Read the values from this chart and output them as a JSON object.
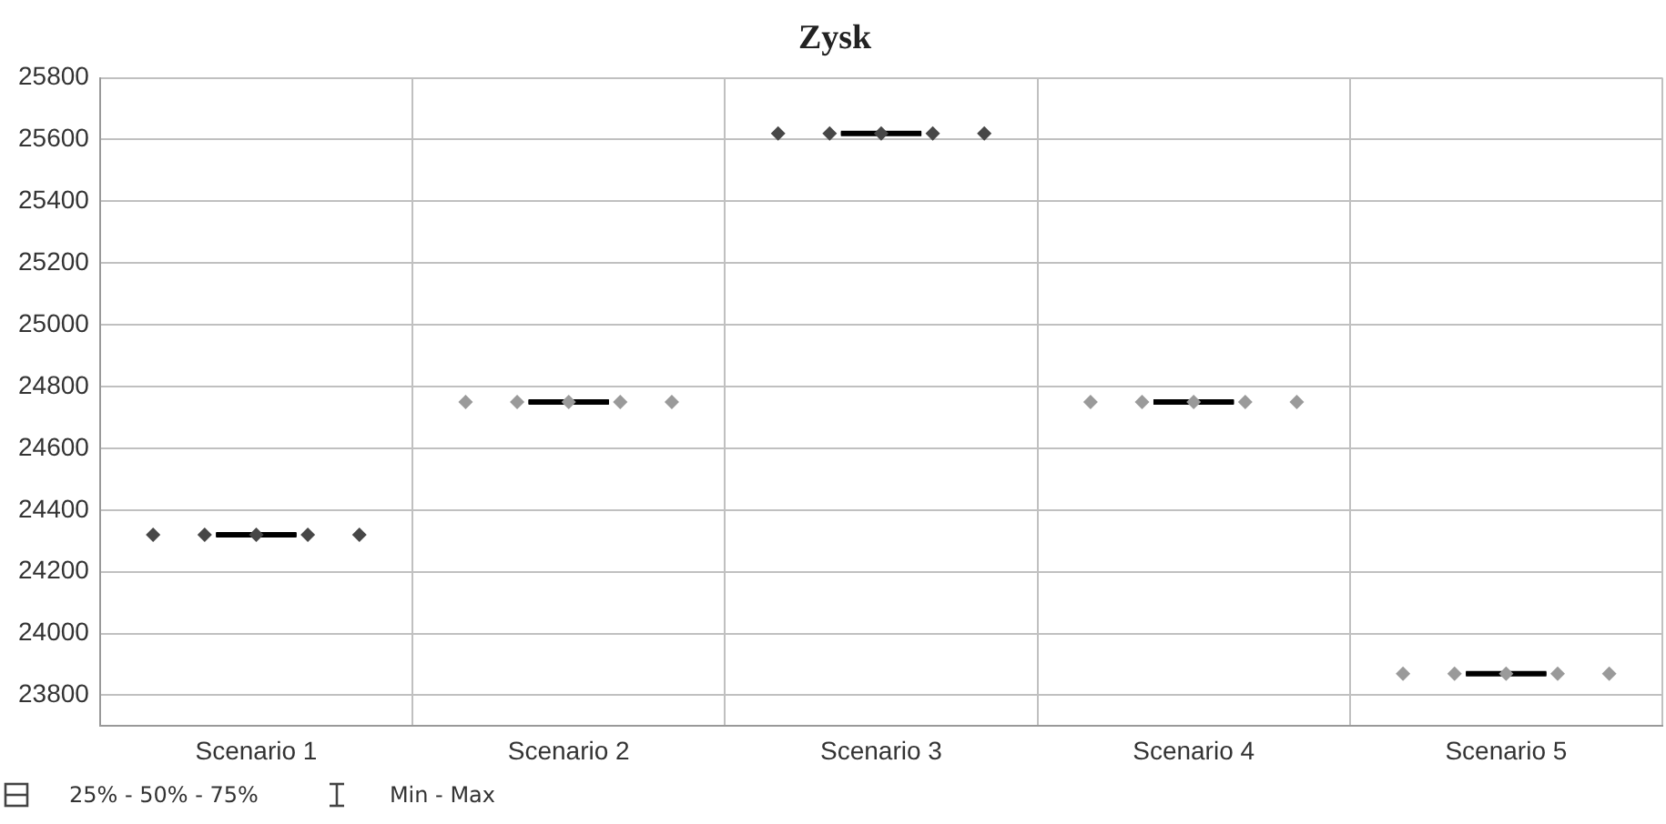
{
  "chart_data": {
    "type": "box",
    "title": "Zysk",
    "categories": [
      "Scenario 1",
      "Scenario 2",
      "Scenario 3",
      "Scenario 4",
      "Scenario 5"
    ],
    "series": [
      {
        "color": "#000000",
        "boxes": [
          {
            "low": 24320,
            "q1": 24320,
            "median": 24320,
            "q3": 24320,
            "high": 24320
          },
          {
            "low": 24750,
            "q1": 24750,
            "median": 24750,
            "q3": 24750,
            "high": 24750
          },
          {
            "low": 25620,
            "q1": 25620,
            "median": 25620,
            "q3": 25620,
            "high": 25620
          },
          {
            "low": 24750,
            "q1": 24750,
            "median": 24750,
            "q3": 24750,
            "high": 24750
          },
          {
            "low": 23870,
            "q1": 23870,
            "median": 23870,
            "q3": 23870,
            "high": 23870
          }
        ]
      },
      {
        "type": "scatter",
        "x": [
          "Scenario 1",
          "Scenario 1",
          "Scenario 1",
          "Scenario 1",
          "Scenario 1",
          "Scenario 2",
          "Scenario 2",
          "Scenario 2",
          "Scenario 2",
          "Scenario 2",
          "Scenario 3",
          "Scenario 3",
          "Scenario 3",
          "Scenario 3",
          "Scenario 3",
          "Scenario 4",
          "Scenario 4",
          "Scenario 4",
          "Scenario 4",
          "Scenario 4",
          "Scenario 5",
          "Scenario 5",
          "Scenario 5",
          "Scenario 5",
          "Scenario 5"
        ],
        "values": [
          24320,
          24320,
          24320,
          24320,
          24320,
          24750,
          24750,
          24750,
          24750,
          24750,
          25620,
          25620,
          25620,
          25620,
          25620,
          24750,
          24750,
          24750,
          24750,
          24750,
          23870,
          23870,
          23870,
          23870,
          23870
        ],
        "colors": [
          "#474747",
          "#474747",
          "#474747",
          "#474747",
          "#474747",
          "#9a9a9a",
          "#9a9a9a",
          "#9a9a9a",
          "#9a9a9a",
          "#9a9a9a",
          "#474747",
          "#474747",
          "#474747",
          "#474747",
          "#474747",
          "#9a9a9a",
          "#9a9a9a",
          "#9a9a9a",
          "#9a9a9a",
          "#9a9a9a",
          "#9a9a9a",
          "#9a9a9a",
          "#9a9a9a",
          "#9a9a9a",
          "#9a9a9a"
        ]
      }
    ],
    "ylim": [
      23700,
      25800
    ],
    "yticks": [
      23800,
      24000,
      24200,
      24400,
      24600,
      24800,
      25000,
      25200,
      25400,
      25600,
      25800
    ],
    "grid": true,
    "marker": "diamond",
    "annotations": [
      "25% - 50% - 75%",
      "Min - Max"
    ]
  }
}
